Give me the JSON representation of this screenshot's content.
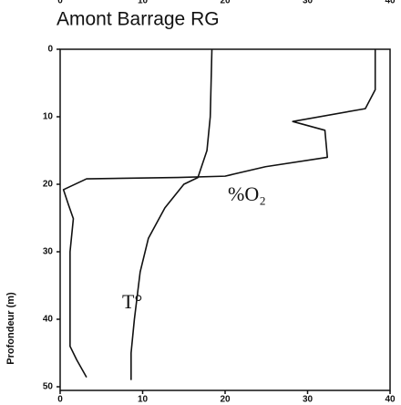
{
  "chart_data": {
    "type": "line",
    "title": "Amont Barrage RG",
    "ylabel": "Profondeur (m)",
    "annotations": [
      "%O₂",
      "T°"
    ],
    "series": [
      {
        "name": "%O₂",
        "color": "#111111",
        "x": [
          38.2,
          38.2,
          37,
          28.2,
          32.1,
          32.4,
          24.9,
          20,
          14.3,
          3.2,
          0.4,
          1,
          1.6,
          1.2,
          1.2,
          2,
          3.2
        ],
        "values": [
          0,
          6,
          8.8,
          10.7,
          12,
          16,
          17.4,
          18.8,
          19,
          19.2,
          20.8,
          23,
          25.1,
          30,
          44,
          46,
          48.6
        ]
      },
      {
        "name": "T°",
        "color": "#111111",
        "x": [
          18.4,
          18.2,
          17.8,
          16.7,
          15,
          12.7,
          10.7,
          9.7,
          9,
          8.6,
          8.6
        ],
        "values": [
          0,
          10,
          15,
          19,
          20,
          23.5,
          28,
          33,
          40,
          45,
          49
        ]
      }
    ],
    "xlim": [
      0,
      40
    ],
    "xticks": [
      0,
      10,
      20,
      30,
      40
    ],
    "ylim": [
      0,
      50
    ],
    "yticks": [
      0,
      10,
      20,
      30,
      40,
      50
    ],
    "y_inverted": true
  }
}
